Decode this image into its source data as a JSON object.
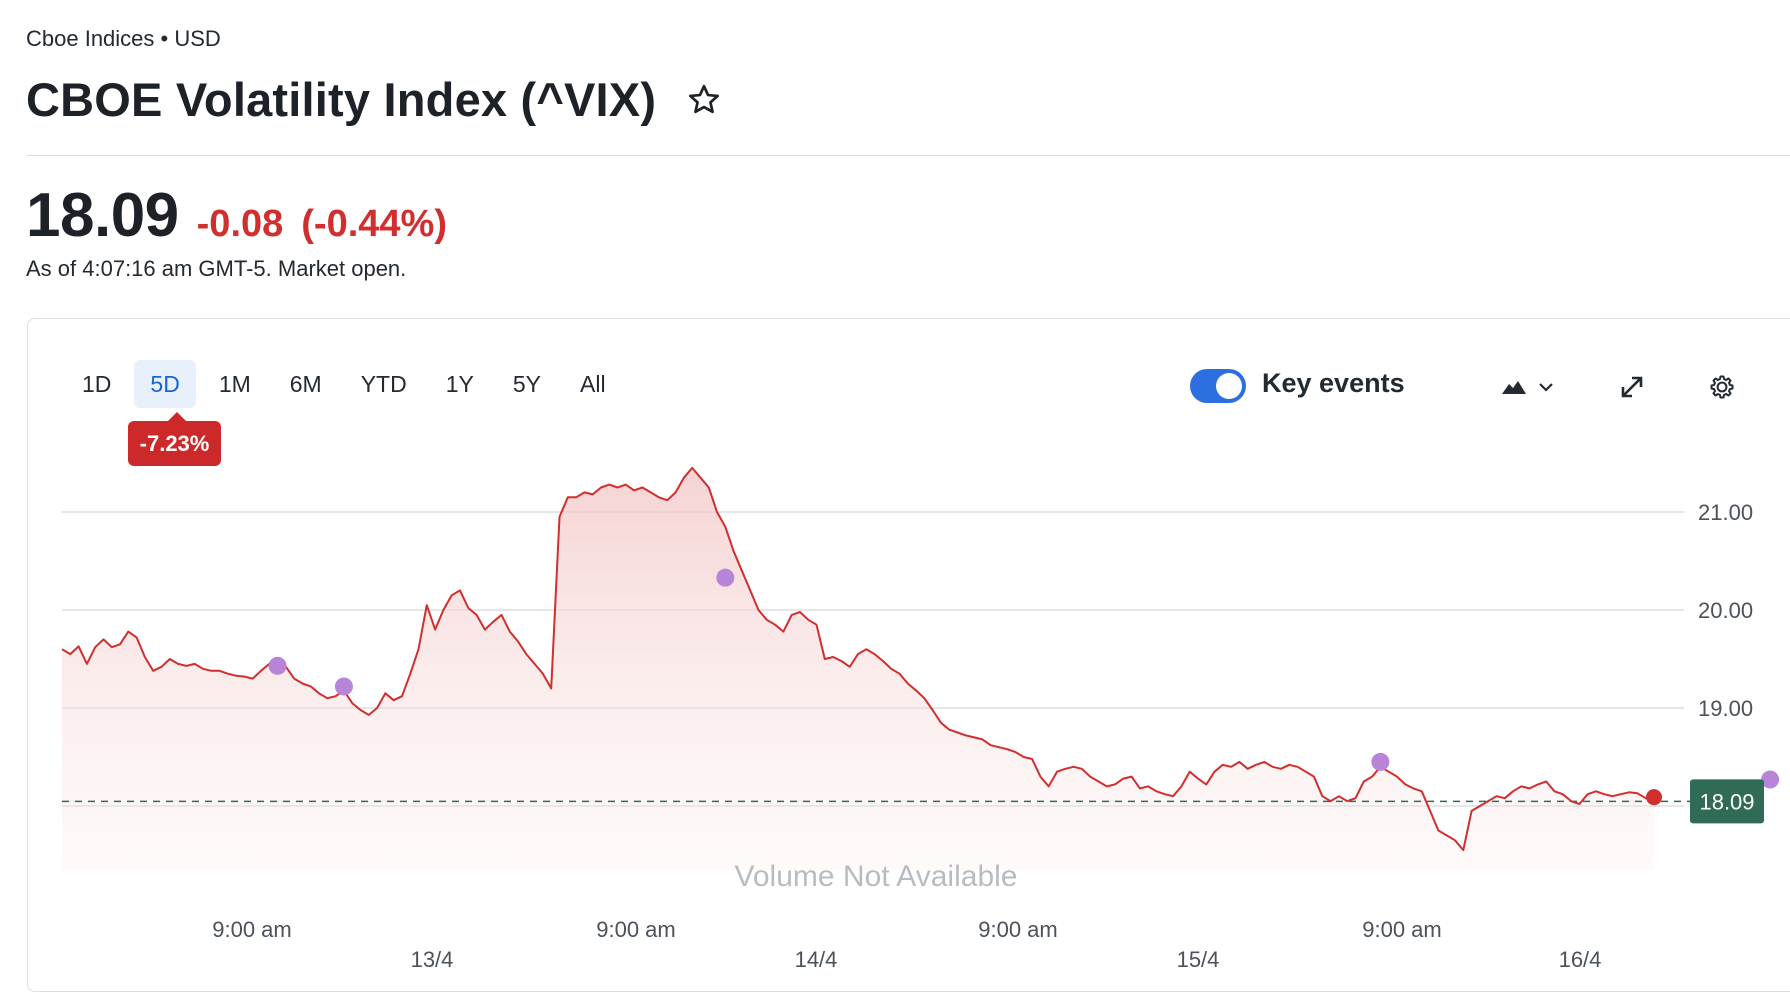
{
  "header": {
    "subtitle": "Cboe Indices • USD",
    "title": "CBOE Volatility Index (^VIX)",
    "watchlist_icon": "star-icon"
  },
  "quote": {
    "price": "18.09",
    "change": "-0.08",
    "change_pct": "(-0.44%)",
    "as_of": "As of 4:07:16 am GMT-5. Market open.",
    "change_color": "#d12e2e"
  },
  "chart_controls": {
    "ranges": [
      "1D",
      "5D",
      "1M",
      "6M",
      "YTD",
      "1Y",
      "5Y",
      "All"
    ],
    "active_range": "5D",
    "range_change": "-7.23%",
    "key_events_label": "Key events",
    "key_events_on": true,
    "chart_type_icon": "mountain-chart-icon",
    "dropdown_icon": "chevron-down-icon",
    "expand_icon": "expand-icon",
    "settings_icon": "gear-icon"
  },
  "colors": {
    "line": "#d12e2e",
    "area": "#f7d6d6",
    "event_marker": "#b784d8",
    "last_price_box": "#2f6b55",
    "toggle": "#2d6fe0",
    "active_tab_bg": "#e7f0fb",
    "active_tab_text": "#1a66d1"
  },
  "chart_data": {
    "type": "area",
    "title": "",
    "volume_text": "Volume Not Available",
    "y_axis": {
      "ticks": [
        "21.00",
        "20.00",
        "19.00"
      ],
      "range": [
        17.45,
        21.55
      ]
    },
    "x_ticks": [
      "9:00 am",
      "9:00 am",
      "9:00 am",
      "9:00 am"
    ],
    "date_ticks": [
      "13/4",
      "14/4",
      "15/4",
      "16/4"
    ],
    "last_value_label": "18.09",
    "previous_close": 18.17,
    "series": [
      {
        "values": [
          19.6,
          19.55,
          19.63,
          19.45,
          19.62,
          19.7,
          19.62,
          19.65,
          19.78,
          19.72,
          19.52,
          19.38,
          19.42,
          19.5,
          19.45,
          19.43,
          19.45,
          19.4,
          19.38,
          19.38,
          19.35,
          19.33,
          19.32,
          19.3,
          19.38,
          19.45,
          19.48,
          19.42,
          19.3,
          19.25,
          19.22,
          19.15,
          19.1,
          19.12,
          19.18,
          19.05,
          18.98,
          18.93,
          19.0,
          19.15,
          19.08,
          19.12,
          19.35,
          19.6,
          20.05,
          19.8,
          20.0,
          20.15,
          20.2,
          20.02,
          19.95,
          19.8,
          19.88,
          19.95,
          19.78,
          19.68,
          19.55,
          19.45,
          19.35,
          19.2,
          20.95,
          21.15,
          21.15,
          21.2,
          21.18,
          21.25,
          21.28,
          21.25,
          21.28,
          21.22,
          21.25,
          21.2,
          21.15,
          21.12,
          21.2,
          21.35,
          21.45,
          21.35,
          21.25,
          21.0,
          20.85,
          20.6,
          20.4,
          20.2,
          20.0,
          19.9,
          19.85,
          19.78,
          19.95,
          19.98,
          19.9,
          19.85,
          19.5,
          19.52,
          19.48,
          19.42,
          19.55,
          19.6,
          19.55,
          19.48,
          19.4,
          19.35,
          19.25,
          19.18,
          19.1,
          18.98,
          18.85,
          18.78,
          18.75,
          18.72,
          18.7,
          18.68,
          18.62,
          18.6,
          18.58,
          18.55,
          18.5,
          18.48,
          18.3,
          18.2,
          18.35,
          18.38,
          18.4,
          18.38,
          18.3,
          18.25,
          18.2,
          18.22,
          18.28,
          18.3,
          18.18,
          18.2,
          18.15,
          18.12,
          18.1,
          18.2,
          18.35,
          18.28,
          18.22,
          18.35,
          18.42,
          18.4,
          18.45,
          18.38,
          18.42,
          18.45,
          18.4,
          18.38,
          18.42,
          18.4,
          18.35,
          18.3,
          18.1,
          18.05,
          18.1,
          18.05,
          18.08,
          18.25,
          18.3,
          18.4,
          18.35,
          18.3,
          18.22,
          18.18,
          18.15,
          17.95,
          17.75,
          17.7,
          17.65,
          17.55,
          17.95,
          18.0,
          18.05,
          18.1,
          18.08,
          18.15,
          18.2,
          18.18,
          18.22,
          18.25,
          18.15,
          18.12,
          18.05,
          18.02,
          18.12,
          18.15,
          18.12,
          18.1,
          18.12,
          18.14,
          18.13,
          18.08,
          18.09
        ]
      }
    ],
    "key_events": [
      {
        "index": 26,
        "value": 19.43
      },
      {
        "index": 34,
        "value": 19.22
      },
      {
        "index": 80,
        "value": 20.33
      },
      {
        "index": 159,
        "value": 18.45
      },
      {
        "index": 206,
        "value": 18.27
      }
    ]
  }
}
